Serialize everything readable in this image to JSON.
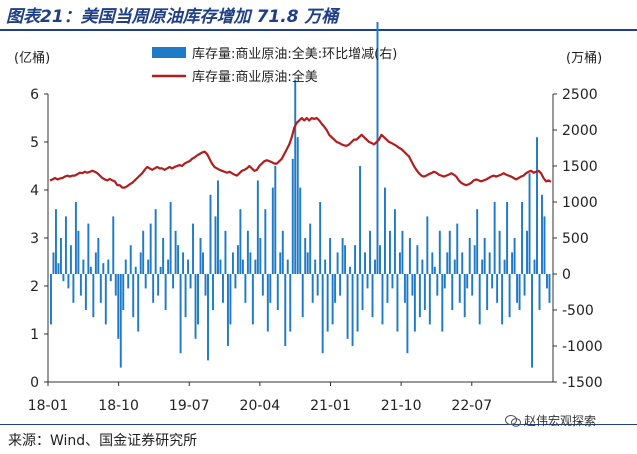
{
  "header": {
    "title": "图表21：美国当周原油库存增加 71.8 万桶"
  },
  "footer": {
    "source": "来源：Wind、国金证券研究所",
    "watermark": "赵伟宏观探索"
  },
  "chart_data": {
    "type": "bar+line",
    "left_unit": "(亿桶)",
    "right_unit": "(万桶)",
    "left_axis": {
      "min": 0,
      "max": 6,
      "ticks": [
        0,
        1,
        2,
        3,
        4,
        5,
        6
      ]
    },
    "right_axis": {
      "min": -1500,
      "max": 2500,
      "ticks": [
        -1500,
        -1000,
        -500,
        0,
        500,
        1000,
        1500,
        2000,
        2500
      ]
    },
    "x_ticks": [
      "18-01",
      "18-10",
      "19-07",
      "20-04",
      "21-01",
      "21-10",
      "22-07"
    ],
    "legend": {
      "bar": "库存量:商业原油:全美:环比增减(右)",
      "line": "库存量:商业原油:全美"
    },
    "colors": {
      "bar": "#1f7ac8",
      "line": "#b01e1e",
      "title": "#1f3f86"
    },
    "line_values": [
      4.2,
      4.22,
      4.25,
      4.22,
      4.24,
      4.25,
      4.28,
      4.3,
      4.28,
      4.3,
      4.3,
      4.33,
      4.36,
      4.35,
      4.38,
      4.36,
      4.38,
      4.4,
      4.38,
      4.35,
      4.3,
      4.25,
      4.22,
      4.2,
      4.23,
      4.2,
      4.18,
      4.1,
      4.1,
      4.05,
      4.05,
      4.08,
      4.12,
      4.15,
      4.2,
      4.25,
      4.3,
      4.35,
      4.42,
      4.48,
      4.45,
      4.42,
      4.45,
      4.48,
      4.45,
      4.45,
      4.42,
      4.45,
      4.48,
      4.45,
      4.48,
      4.5,
      4.52,
      4.5,
      4.55,
      4.58,
      4.6,
      4.65,
      4.68,
      4.72,
      4.75,
      4.78,
      4.8,
      4.75,
      4.65,
      4.55,
      4.48,
      4.45,
      4.42,
      4.4,
      4.38,
      4.36,
      4.38,
      4.35,
      4.32,
      4.3,
      4.35,
      4.4,
      4.42,
      4.45,
      4.5,
      4.45,
      4.4,
      4.42,
      4.5,
      4.55,
      4.6,
      4.62,
      4.6,
      4.58,
      4.55,
      4.55,
      4.6,
      4.65,
      4.75,
      4.85,
      4.95,
      5.1,
      5.3,
      5.4,
      5.45,
      5.5,
      5.45,
      5.5,
      5.45,
      5.5,
      5.48,
      5.5,
      5.45,
      5.38,
      5.32,
      5.25,
      5.15,
      5.1,
      5.05,
      5.0,
      4.98,
      4.95,
      4.93,
      4.92,
      4.95,
      5.0,
      5.05,
      5.05,
      5.1,
      5.15,
      5.1,
      5.05,
      5.0,
      4.98,
      4.95,
      5.0,
      5.05,
      5.15,
      5.1,
      5.05,
      5.0,
      4.98,
      4.95,
      4.92,
      4.88,
      4.85,
      4.8,
      4.75,
      4.7,
      4.6,
      4.5,
      4.42,
      4.35,
      4.3,
      4.28,
      4.3,
      4.33,
      4.35,
      4.38,
      4.36,
      4.32,
      4.3,
      4.28,
      4.3,
      4.32,
      4.35,
      4.32,
      4.28,
      4.2,
      4.15,
      4.12,
      4.1,
      4.12,
      4.15,
      4.2,
      4.22,
      4.2,
      4.18,
      4.2,
      4.22,
      4.25,
      4.28,
      4.3,
      4.28,
      4.3,
      4.32,
      4.35,
      4.32,
      4.3,
      4.28,
      4.25,
      4.22,
      4.25,
      4.28,
      4.3,
      4.35,
      4.38,
      4.4,
      4.36,
      4.38,
      4.4,
      4.35,
      4.25,
      4.18,
      4.2,
      4.17
    ],
    "bar_values": [
      -700,
      300,
      900,
      150,
      500,
      -100,
      800,
      -200,
      400,
      -400,
      1000,
      600,
      -300,
      200,
      -500,
      700,
      100,
      -600,
      300,
      500,
      -400,
      150,
      -700,
      200,
      -100,
      800,
      -300,
      -900,
      -1300,
      -500,
      200,
      -200,
      400,
      -600,
      100,
      -800,
      300,
      600,
      -200,
      200,
      700,
      -400,
      900,
      -300,
      100,
      500,
      -500,
      200,
      1000,
      -200,
      600,
      400,
      -1100,
      300,
      -600,
      200,
      -200,
      700,
      -900,
      -700,
      500,
      300,
      -300,
      -1200,
      1100,
      -500,
      800,
      1300,
      200,
      -400,
      600,
      -1000,
      -700,
      300,
      -200,
      400,
      900,
      200,
      -400,
      600,
      300,
      -700,
      200,
      1300,
      500,
      -300,
      900,
      -800,
      -400,
      1200,
      1500,
      -500,
      300,
      600,
      -1000,
      200,
      -800,
      1600,
      2700,
      1900,
      1200,
      -600,
      500,
      300,
      700,
      -400,
      200,
      -300,
      1000,
      -1100,
      200,
      -800,
      500,
      -700,
      -400,
      300,
      -300,
      500,
      400,
      -900,
      100,
      -1000,
      400,
      -800,
      1500,
      -500,
      300,
      -200,
      600,
      -600,
      200,
      3500,
      400,
      -700,
      1200,
      -400,
      600,
      -200,
      900,
      -800,
      300,
      600,
      -400,
      -1100,
      500,
      -300,
      -800,
      400,
      -600,
      200,
      -500,
      800,
      -700,
      300,
      100,
      -300,
      600,
      -800,
      -200,
      300,
      600,
      -500,
      200,
      700,
      -400,
      300,
      -600,
      -200,
      500,
      -300,
      400,
      900,
      -700,
      200,
      500,
      -500,
      300,
      -200,
      1000,
      -400,
      600,
      -700,
      200,
      1000,
      -600,
      300,
      500,
      -400,
      -500,
      1000,
      -300,
      600,
      1400,
      -1300,
      200,
      1900,
      -500,
      1100,
      800,
      -200,
      -400
    ]
  }
}
